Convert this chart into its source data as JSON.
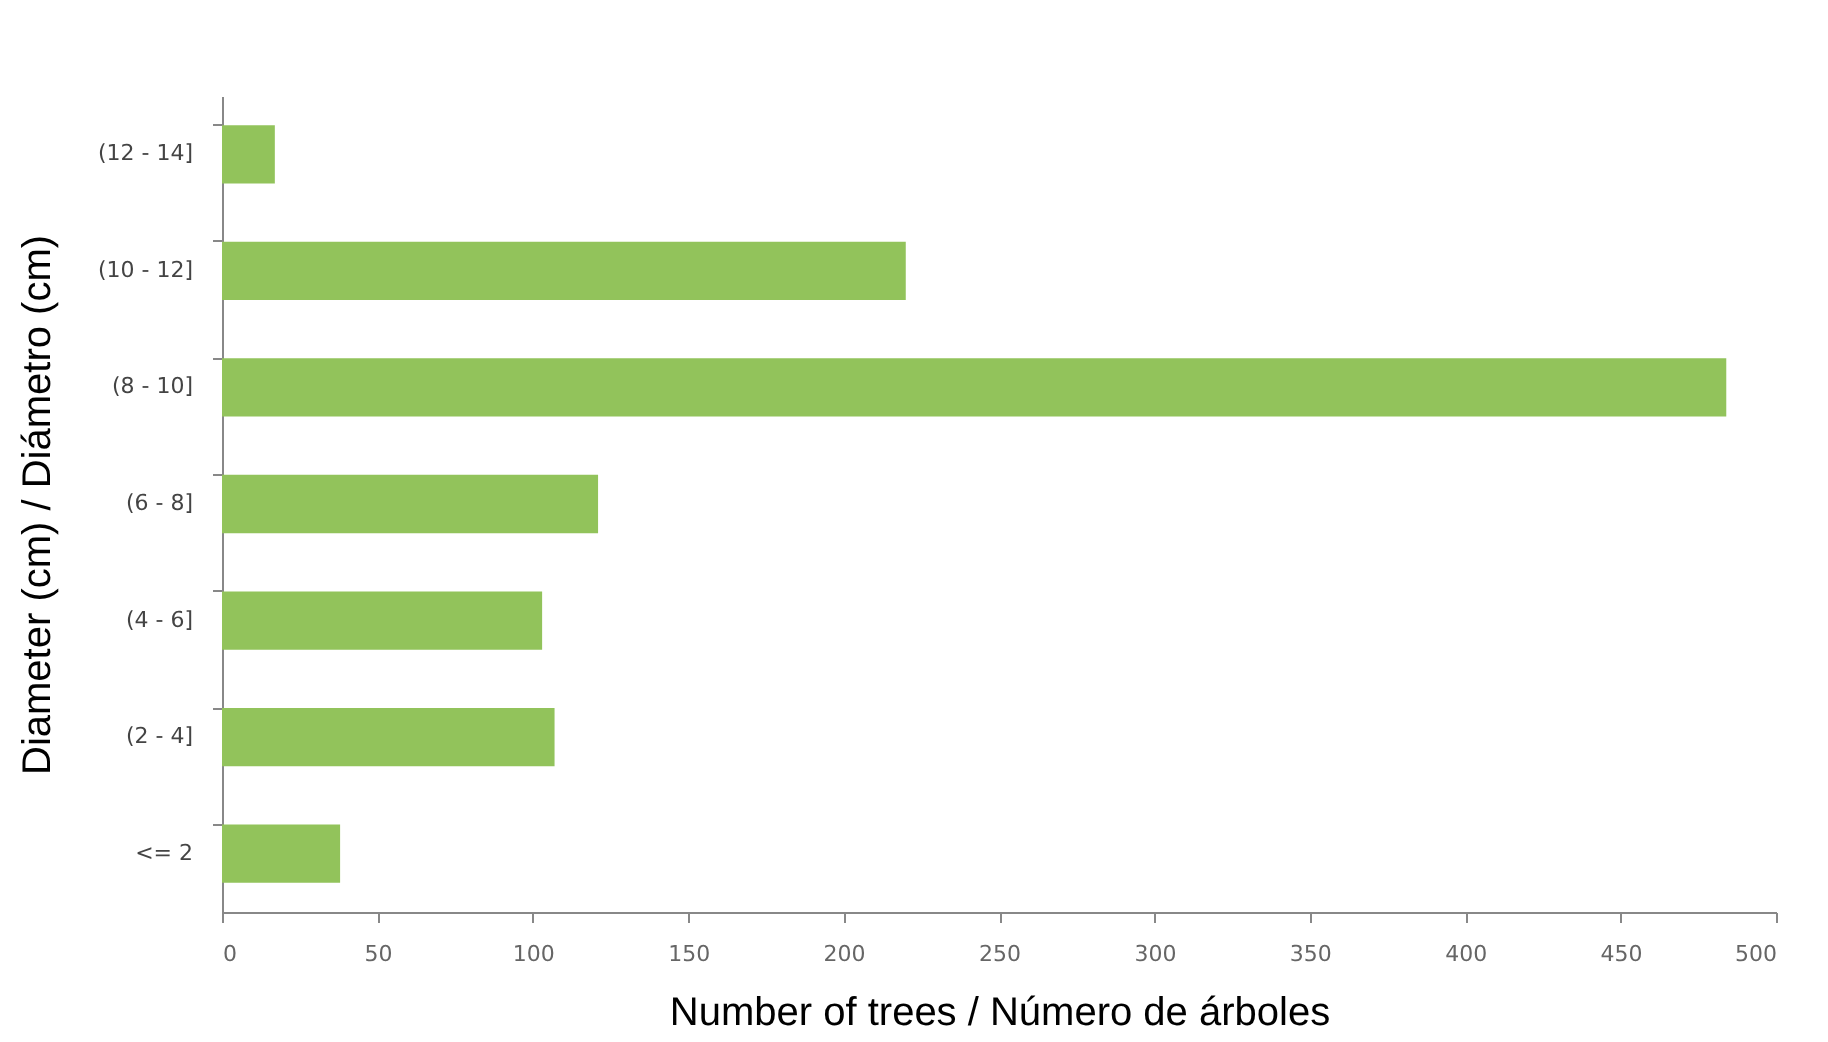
{
  "chart_data": {
    "type": "bar",
    "orientation": "horizontal",
    "xlabel": "Number of trees / Número de árboles",
    "ylabel": "Diameter (cm) / Diámetro (cm)",
    "categories": [
      "(12 - 14]",
      "(10 - 12]",
      "(8 - 10]",
      "(6 - 8]",
      "(4 - 6]",
      "(2 - 4]",
      "<= 2"
    ],
    "values": [
      17,
      220,
      484,
      121,
      103,
      107,
      38
    ],
    "color": "#92c35b",
    "xlim": [
      0,
      500
    ],
    "xticks": [
      0,
      50,
      100,
      150,
      200,
      250,
      300,
      350,
      400,
      450,
      500
    ],
    "grid": false
  }
}
